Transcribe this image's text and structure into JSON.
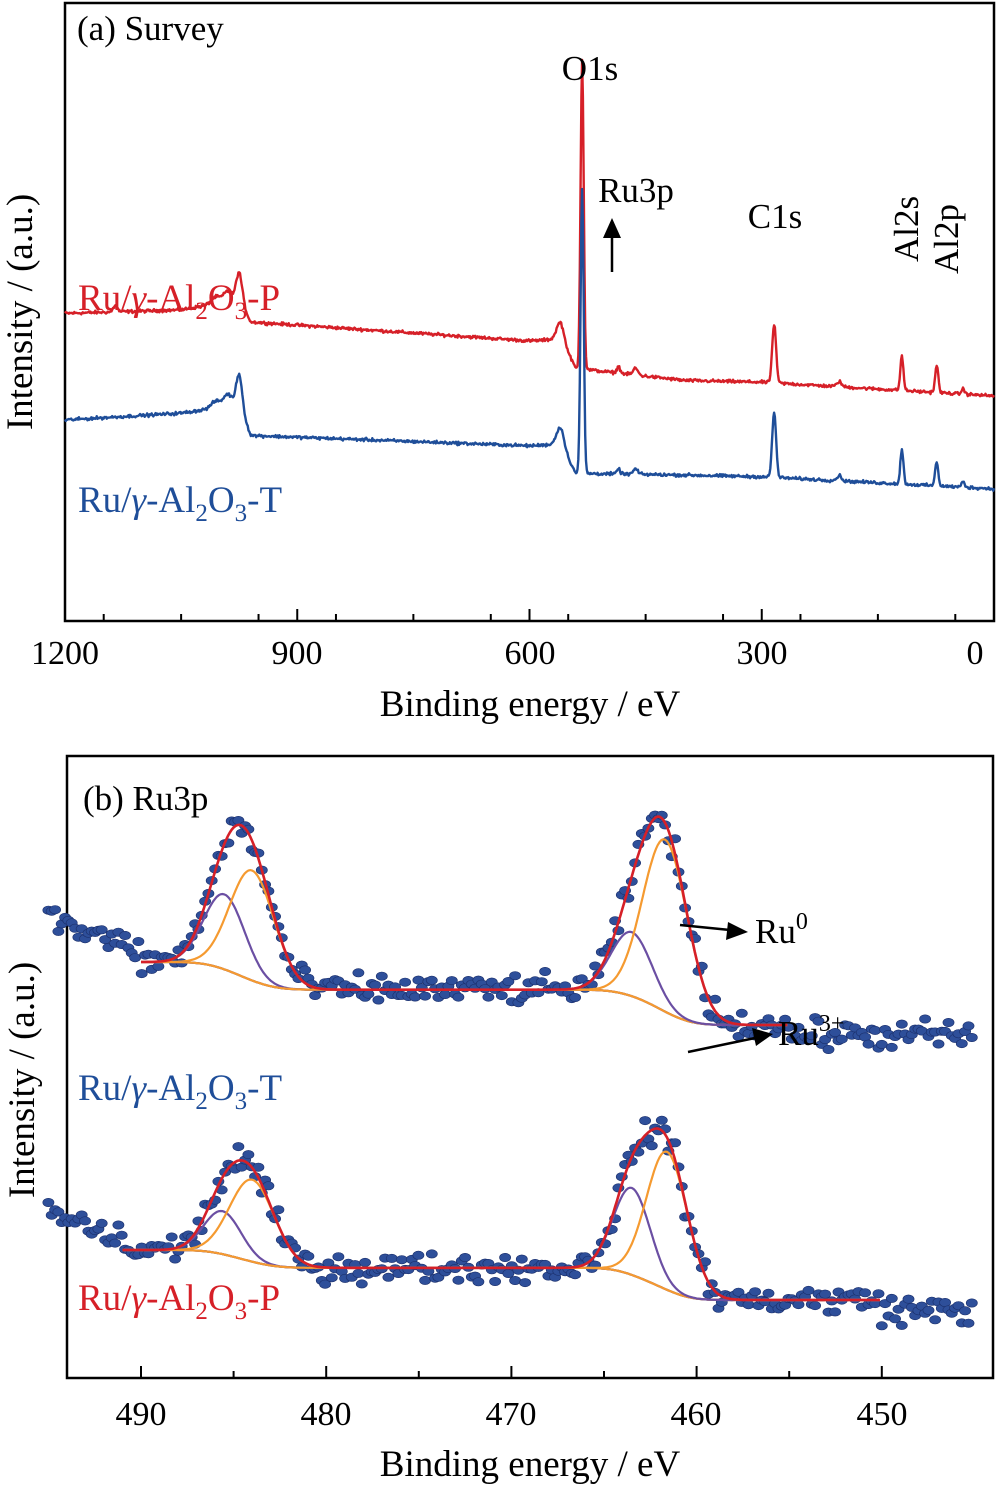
{
  "chart_data": [
    {
      "type": "line",
      "panel": "(a) Survey",
      "xlabel": "Binding energy / eV",
      "ylabel": "Intensity / (a.u.)",
      "xlim": [
        1200,
        0
      ],
      "x_reversed": true,
      "xticks": [
        1200,
        900,
        600,
        300,
        0
      ],
      "yticks_shown": false,
      "peak_labels": [
        "O1s",
        "Ru3p",
        "C1s",
        "Al2s",
        "Al2p"
      ],
      "colors": {
        "P": "#d62028",
        "T": "#1f4e99"
      },
      "series": [
        {
          "name": "Ru/γ-Al2O3-P",
          "label_parts": [
            "Ru/",
            "γ",
            "-Al",
            "2",
            "O",
            "3",
            "-P"
          ],
          "baseline": [
            [
              1200,
              62
            ],
            [
              1050,
              64
            ],
            [
              975,
              70
            ],
            [
              960,
              57
            ],
            [
              600,
              46
            ],
            [
              560,
              47
            ],
            [
              540,
              30
            ],
            [
              400,
              23
            ],
            [
              300,
              22
            ],
            [
              0,
              14
            ]
          ],
          "peaks": [
            {
              "x": 1135,
              "h": 4,
              "w": 2.5
            },
            {
              "x": 1005,
              "h": 4,
              "w": 6
            },
            {
              "x": 990,
              "h": 6,
              "w": 5
            },
            {
              "x": 975,
              "h": 16,
              "w": 4
            },
            {
              "x": 560,
              "h": 10,
              "w": 5
            },
            {
              "x": 532,
              "h": 180,
              "w": 2
            },
            {
              "x": 485,
              "h": 4,
              "w": 2
            },
            {
              "x": 463,
              "h": 4,
              "w": 3
            },
            {
              "x": 284,
              "h": 34,
              "w": 2.5
            },
            {
              "x": 200,
              "h": 3,
              "w": 3
            },
            {
              "x": 119,
              "h": 20,
              "w": 2
            },
            {
              "x": 74,
              "h": 16,
              "w": 2
            },
            {
              "x": 40,
              "h": 3,
              "w": 2
            }
          ]
        },
        {
          "name": "Ru/γ-Al2O3-T",
          "label_parts": [
            "Ru/",
            "γ",
            "-Al",
            "2",
            "O",
            "3",
            "-T"
          ],
          "baseline": [
            [
              1200,
              0
            ],
            [
              1050,
              4
            ],
            [
              975,
              9
            ],
            [
              960,
              -9
            ],
            [
              600,
              -15
            ],
            [
              560,
              -14
            ],
            [
              540,
              -31
            ],
            [
              400,
              -32
            ],
            [
              300,
              -33
            ],
            [
              0,
              -40
            ]
          ],
          "peaks": [
            {
              "x": 1005,
              "h": 4,
              "w": 6
            },
            {
              "x": 990,
              "h": 7,
              "w": 5
            },
            {
              "x": 975,
              "h": 18,
              "w": 4
            },
            {
              "x": 560,
              "h": 10,
              "w": 5
            },
            {
              "x": 532,
              "h": 165,
              "w": 2
            },
            {
              "x": 485,
              "h": 3,
              "w": 2
            },
            {
              "x": 463,
              "h": 3,
              "w": 3
            },
            {
              "x": 284,
              "h": 38,
              "w": 2.5
            },
            {
              "x": 200,
              "h": 3,
              "w": 3
            },
            {
              "x": 119,
              "h": 20,
              "w": 2
            },
            {
              "x": 74,
              "h": 14,
              "w": 2
            },
            {
              "x": 40,
              "h": 3,
              "w": 2
            }
          ]
        }
      ]
    },
    {
      "type": "scatter",
      "panel": "(b) Ru3p",
      "xlabel": "Binding energy / eV",
      "ylabel": "Intensity / (a.u.)",
      "xlim": [
        495,
        445
      ],
      "x_reversed": true,
      "xticks": [
        490,
        480,
        470,
        460,
        450
      ],
      "yticks_shown": false,
      "point_color": "#2e4f9a",
      "component_labels": [
        "Ru",
        "0",
        "Ru",
        "3+"
      ],
      "fit_colors": {
        "envelope": "#d62028",
        "Ru0": "#f59a30",
        "Ru3+": "#6b4fa3",
        "background": "#16205a"
      },
      "series": [
        {
          "name": "Ru/γ-Al2O3-T",
          "label_parts": [
            "Ru/",
            "γ",
            "-Al",
            "2",
            "O",
            "3",
            "-T"
          ],
          "fit_range": [
            490,
            455
          ],
          "background": {
            "high": 163,
            "low": 100
          },
          "components": [
            {
              "name": "Ru3+",
              "x0": 485.5,
              "sigma": 1.1,
              "height": 75
            },
            {
              "name": "Ru0",
              "x0": 484,
              "sigma": 1.2,
              "height": 110
            },
            {
              "name": "Ru3+",
              "x0": 463.5,
              "sigma": 1.1,
              "height": 64
            },
            {
              "name": "Ru0",
              "x0": 461.7,
              "sigma": 1.2,
              "height": 172
            }
          ],
          "noise_tail": {
            "from": 495,
            "to": 445
          }
        },
        {
          "name": "Ru/γ-Al2O3-P",
          "label_parts": [
            "Ru/",
            "γ",
            "-Al",
            "2",
            "O",
            "3",
            "-P"
          ],
          "fit_range": [
            491,
            450
          ],
          "background": {
            "high": 50,
            "low": 0
          },
          "components": [
            {
              "name": "Ru3+",
              "x0": 485.6,
              "sigma": 1.0,
              "height": 43
            },
            {
              "name": "Ru0",
              "x0": 484,
              "sigma": 1.2,
              "height": 82
            },
            {
              "name": "Ru3+",
              "x0": 463.5,
              "sigma": 1.0,
              "height": 87
            },
            {
              "name": "Ru0",
              "x0": 461.6,
              "sigma": 1.1,
              "height": 138
            }
          ],
          "noise_tail": {
            "from": 495,
            "to": 445
          }
        }
      ]
    }
  ]
}
